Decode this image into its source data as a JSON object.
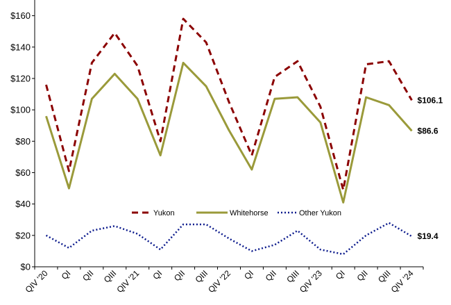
{
  "chart_data": {
    "type": "line",
    "title": "",
    "xlabel": "",
    "ylabel": "",
    "ylim": [
      0,
      170
    ],
    "y_ticks": [
      "$0",
      "$20",
      "$40",
      "$60",
      "$80",
      "$100",
      "$120",
      "$140",
      "$160"
    ],
    "categories": [
      "QIV '20",
      "QI",
      "QII",
      "QIII",
      "QIV '21",
      "QI",
      "QII",
      "QIII",
      "QIV '22",
      "QI",
      "QII",
      "QIII",
      "QIV '23",
      "QI",
      "QII",
      "QIII",
      "QIV '24"
    ],
    "series": [
      {
        "name": "Yukon",
        "color": "#8b0000",
        "style": "dashed",
        "values": [
          116,
          61,
          130,
          149,
          128,
          80,
          158,
          143,
          105,
          71,
          121,
          131,
          102,
          49,
          129,
          131,
          106.1
        ]
      },
      {
        "name": "Whitehorse",
        "color": "#9a9a3a",
        "style": "solid",
        "values": [
          96,
          50,
          107,
          123,
          107,
          71,
          130,
          115,
          87,
          62,
          107,
          108,
          92,
          41,
          108,
          103,
          86.6
        ]
      },
      {
        "name": "Other Yukon",
        "color": "#0b1a8c",
        "style": "dotted",
        "values": [
          20,
          12,
          23,
          26,
          21,
          11,
          27,
          27,
          18,
          10,
          14,
          23,
          11,
          8,
          20,
          28,
          19.4
        ]
      }
    ],
    "end_labels": [
      "$106.1",
      "$86.6",
      "$19.4"
    ],
    "legend_position": "inside-lower-middle",
    "grid": false
  }
}
